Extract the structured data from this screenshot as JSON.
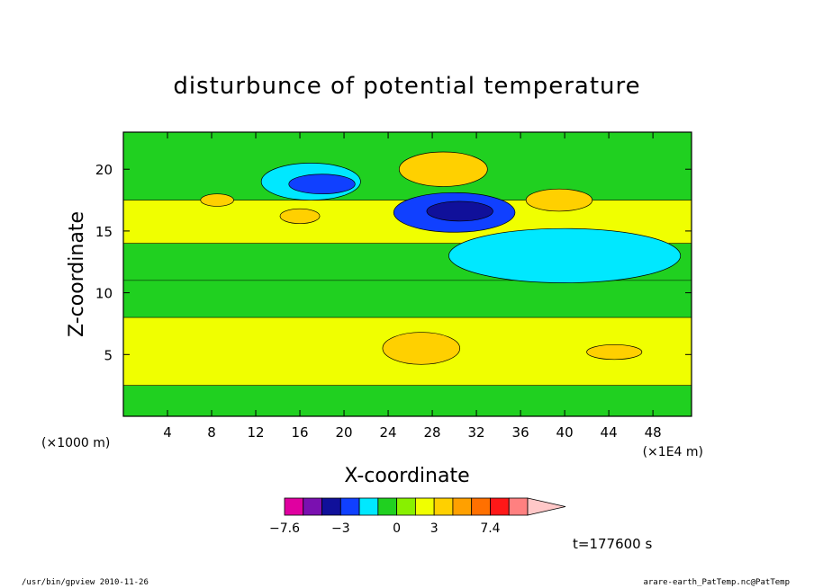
{
  "chart_data": {
    "type": "contour",
    "title": "disturbunce of potential temperature",
    "xlabel": "X-coordinate",
    "ylabel": "Z-coordinate",
    "x_unit": "(×1E4 m)",
    "y_unit": "(×1000 m)",
    "xlim": [
      0,
      51.5
    ],
    "ylim": [
      0,
      23
    ],
    "x_ticks": [
      4,
      8,
      12,
      16,
      20,
      24,
      28,
      32,
      36,
      40,
      44,
      48
    ],
    "y_ticks": [
      5,
      10,
      15,
      20
    ],
    "colorbar": {
      "labels": [
        "−7.6",
        "−3",
        "0",
        "3",
        "7.4"
      ],
      "label_bins": [
        0,
        3,
        6,
        8,
        11
      ],
      "colors": [
        "#e000a0",
        "#7a10b0",
        "#10109a",
        "#1040ff",
        "#00e8ff",
        "#20d020",
        "#88f000",
        "#f0ff00",
        "#ffd000",
        "#ffa000",
        "#ff7000",
        "#ff1818",
        "#ff8080"
      ],
      "extend_color": "#ffc8c8"
    },
    "bands": [
      {
        "z": [
          0,
          2.5
        ],
        "color": "#20d020"
      },
      {
        "z": [
          2.5,
          8
        ],
        "color": "#f0ff00"
      },
      {
        "z": [
          8,
          11
        ],
        "color": "#20d020"
      },
      {
        "z": [
          11,
          14
        ],
        "color": "#20d020"
      },
      {
        "z": [
          14,
          17.5
        ],
        "color": "#f0ff00"
      },
      {
        "z": [
          17.5,
          23
        ],
        "color": "#20d020"
      }
    ],
    "features": [
      {
        "level": 1,
        "x": 17,
        "z": 19.0,
        "rx": 4.5,
        "rz": 1.5,
        "color": "#00e8ff"
      },
      {
        "level": -2,
        "x": 18,
        "z": 18.8,
        "rx": 3.0,
        "rz": 0.8,
        "color": "#1040ff"
      },
      {
        "level": -3,
        "x": 30,
        "z": 16.5,
        "rx": 5.5,
        "rz": 1.6,
        "color": "#1040ff"
      },
      {
        "level": -4,
        "x": 30.5,
        "z": 16.6,
        "rx": 3.0,
        "rz": 0.8,
        "color": "#10109a"
      },
      {
        "level": 2,
        "x": 40,
        "z": 13.0,
        "rx": 10.5,
        "rz": 2.2,
        "color": "#00e8ff"
      },
      {
        "level": 2,
        "x": 29,
        "z": 20.0,
        "rx": 4.0,
        "rz": 1.4,
        "color": "#ffd000"
      },
      {
        "level": 2,
        "x": 39.5,
        "z": 17.5,
        "rx": 3.0,
        "rz": 0.9,
        "color": "#ffd000"
      },
      {
        "level": 2,
        "x": 27,
        "z": 5.5,
        "rx": 3.5,
        "rz": 1.3,
        "color": "#ffd000"
      },
      {
        "level": 2,
        "x": 44.5,
        "z": 5.2,
        "rx": 2.5,
        "rz": 0.6,
        "color": "#ffd000"
      },
      {
        "level": 2,
        "x": 16,
        "z": 16.2,
        "rx": 1.8,
        "rz": 0.6,
        "color": "#ffd000"
      },
      {
        "level": 2,
        "x": 8.5,
        "z": 17.5,
        "rx": 1.5,
        "rz": 0.5,
        "color": "#ffd000"
      }
    ]
  },
  "time_label": "t=177600 s",
  "footer": {
    "left": "/usr/bin/gpview  2010-11-26",
    "right": "arare-earth_PatTemp.nc@PatTemp"
  }
}
